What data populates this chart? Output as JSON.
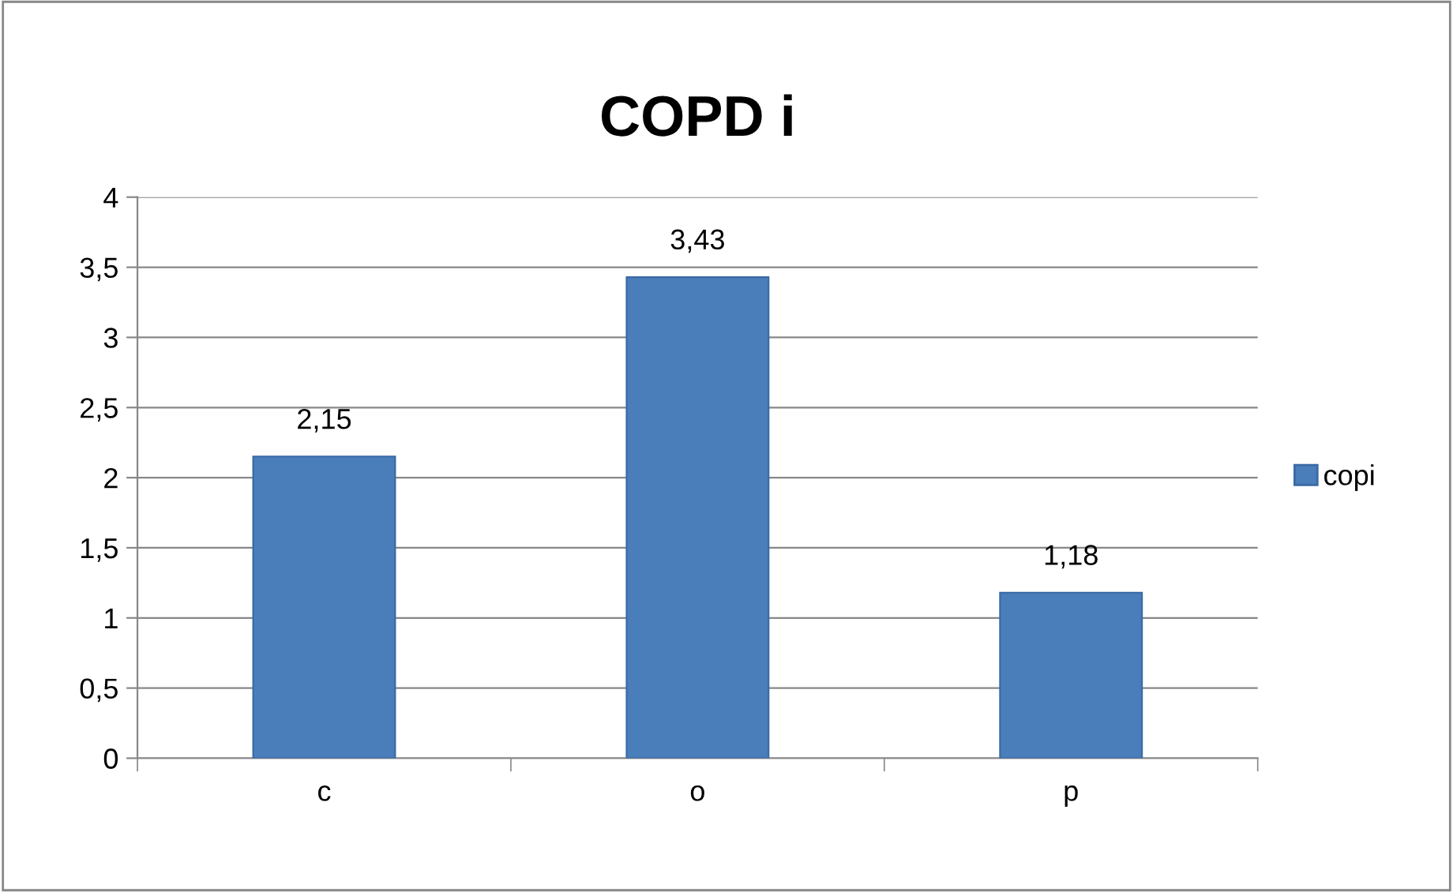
{
  "chart_data": {
    "type": "bar",
    "title": "COPD i",
    "categories": [
      "c",
      "o",
      "p"
    ],
    "series": [
      {
        "name": "copi",
        "color": "#4a7ebb",
        "values": [
          2.15,
          3.43,
          1.18
        ],
        "value_labels": [
          "2,15",
          "3,43",
          "1,18"
        ]
      }
    ],
    "ylim": [
      0,
      4
    ],
    "yticks": [
      0,
      {
        "value": 0.5,
        "label": "0,5"
      },
      1,
      {
        "value": 1.5,
        "label": "1,5"
      },
      2,
      {
        "value": 2.5,
        "label": "2,5"
      },
      3,
      {
        "value": 3.5,
        "label": "3,5"
      },
      4
    ],
    "grid": "y",
    "legend": "right"
  }
}
